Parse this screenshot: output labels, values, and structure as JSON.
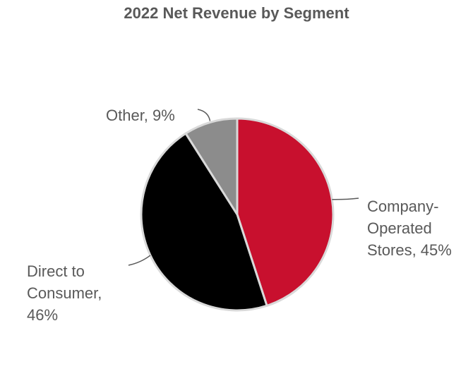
{
  "chart_data": {
    "type": "pie",
    "title": "2022 Net Revenue by Segment",
    "slices": [
      {
        "name": "Company-Operated Stores",
        "value": 45,
        "label_lines": [
          "Company-",
          "Operated",
          "Stores, 45%"
        ],
        "color": "#C8102E"
      },
      {
        "name": "Direct to Consumer",
        "value": 46,
        "label_lines": [
          "Direct to",
          "Consumer,",
          "46%"
        ],
        "color": "#000000"
      },
      {
        "name": "Other",
        "value": 9,
        "label_lines": [
          "Other, 9%"
        ],
        "color": "#8C8C8C"
      }
    ],
    "start_angle_deg": 0,
    "direction": "clockwise",
    "edge_color": "#D9D9D9"
  }
}
